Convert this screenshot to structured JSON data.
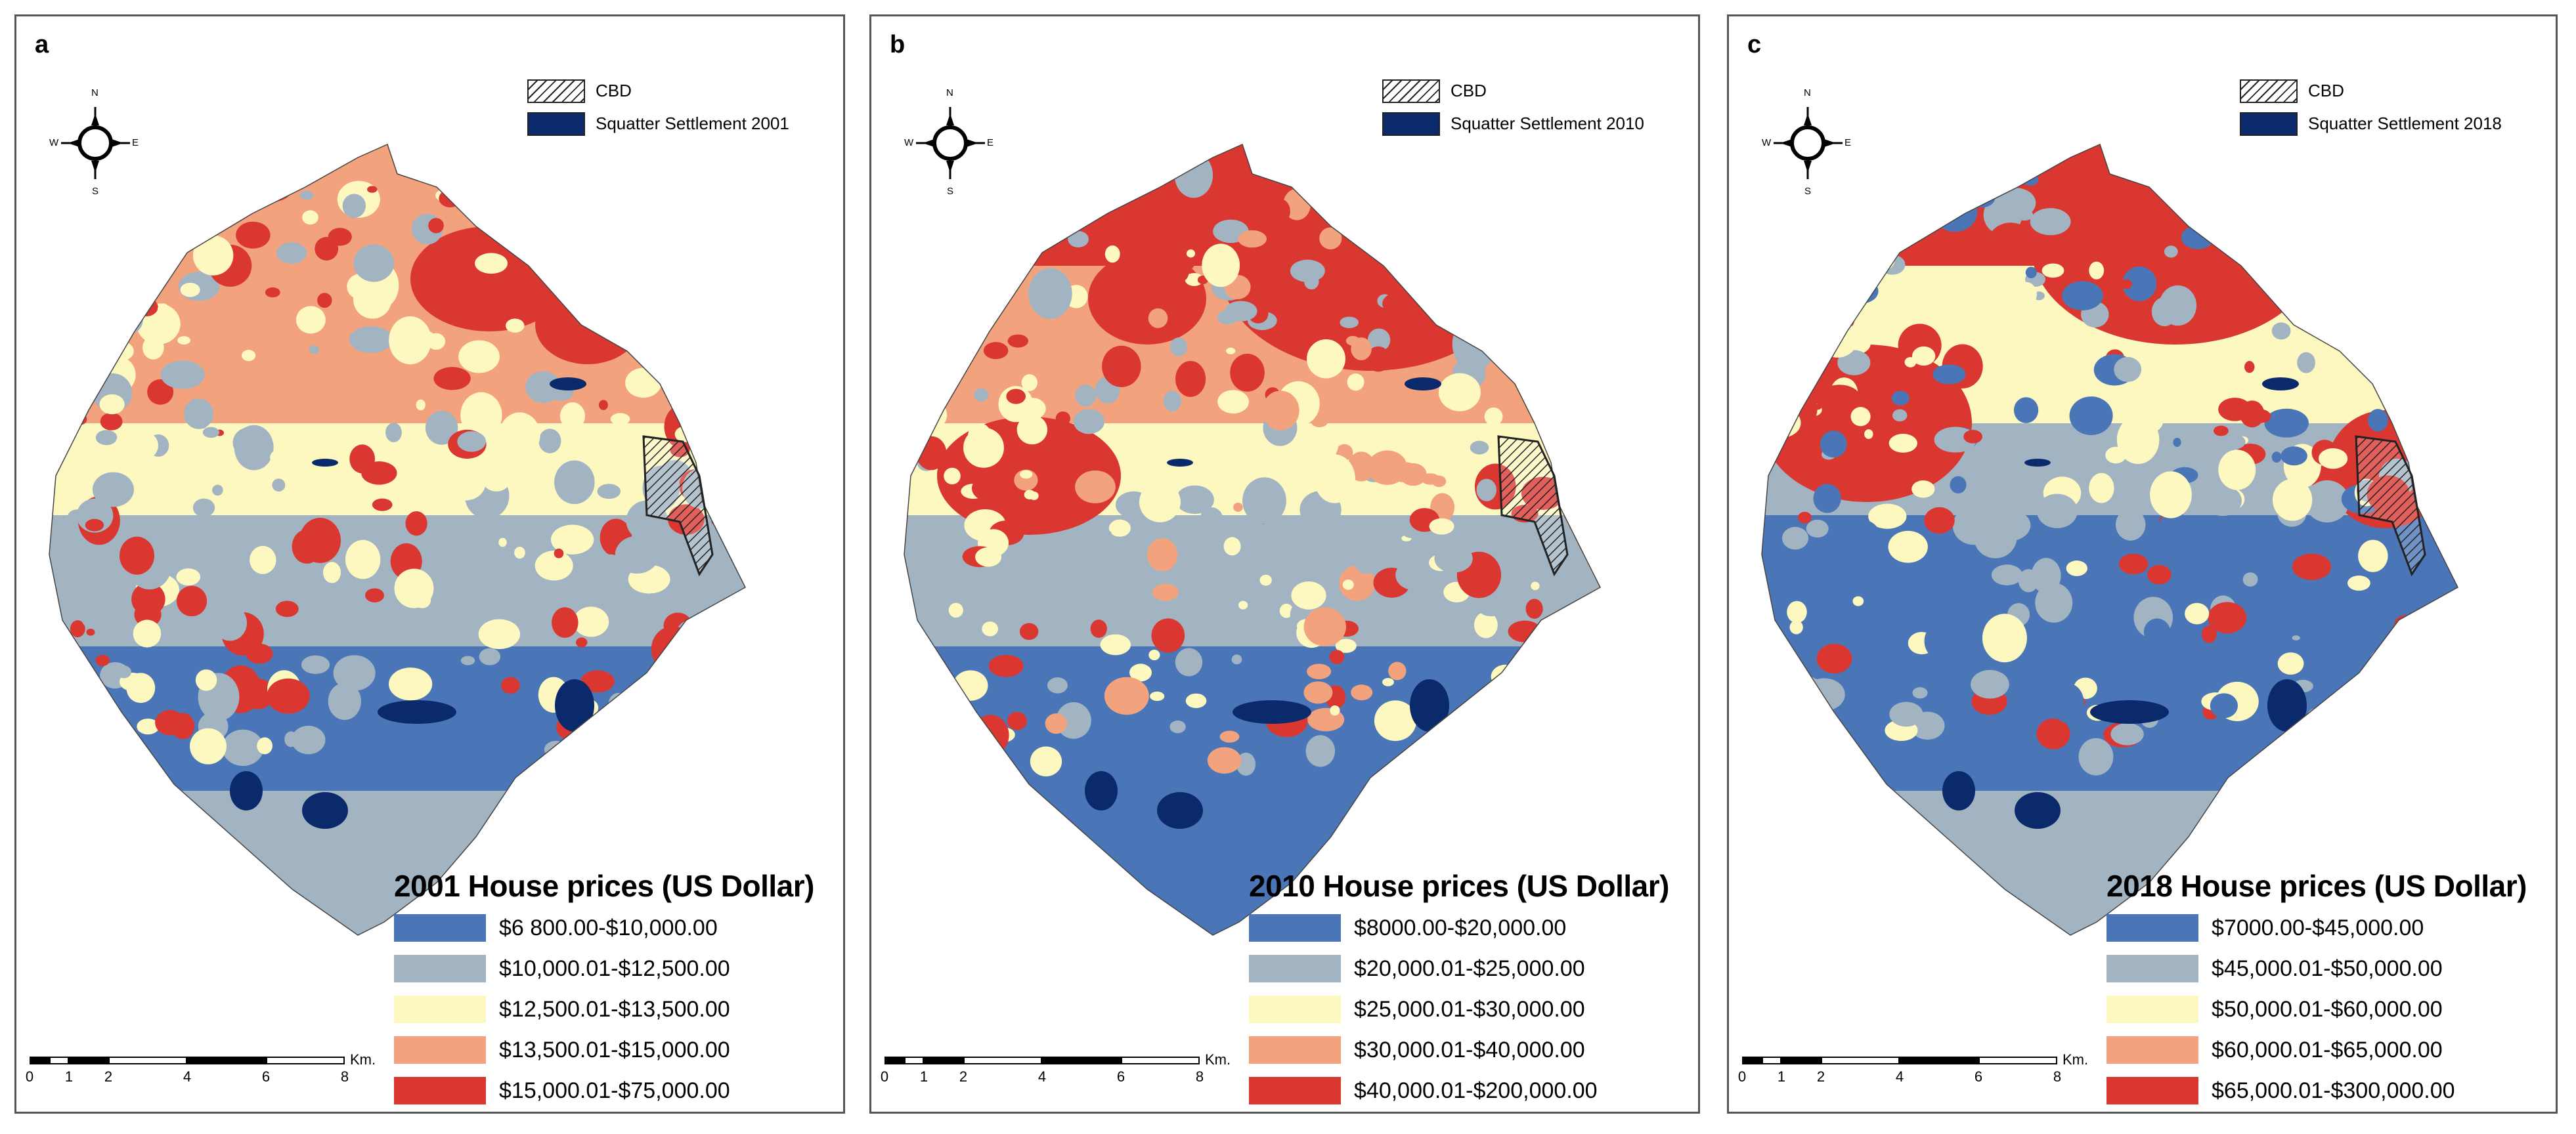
{
  "compass": {
    "n": "N",
    "s": "S",
    "e": "E",
    "w": "W"
  },
  "cbd_label": "CBD",
  "scale": {
    "ticks": [
      "0",
      "1",
      "2",
      "4",
      "6",
      "8"
    ],
    "unit": "Km."
  },
  "colors": {
    "c1": "#4a76b8",
    "c2": "#a2b4c2",
    "c3": "#fdf8c0",
    "c4": "#f2a37e",
    "c5": "#db3731",
    "squatter": "#0a2a6b",
    "cbd_hatch": "#222222"
  },
  "panels": [
    {
      "letter": "a",
      "squatter_label": "Squatter Settlement  2001",
      "legend_title": "2001 House prices (US Dollar)",
      "classes": [
        "$6 800.00-$10,000.00",
        "$10,000.01-$12,500.00",
        "$12,500.01-$13,500.00",
        "$13,500.01-$15,000.00",
        "$15,000.01-$75,000.00"
      ]
    },
    {
      "letter": "b",
      "squatter_label": "Squatter Settlement  2010",
      "legend_title": "2010 House prices (US Dollar)",
      "classes": [
        "$8000.00-$20,000.00",
        "$20,000.01-$25,000.00",
        "$25,000.01-$30,000.00",
        "$30,000.01-$40,000.00",
        "$40,000.01-$200,000.00"
      ]
    },
    {
      "letter": "c",
      "squatter_label": "Squatter Settlement  2018",
      "legend_title": "2018 House prices (US Dollar)",
      "classes": [
        "$7000.00-$45,000.00",
        "$45,000.01-$50,000.00",
        "$50,000.01-$60,000.00",
        "$60,000.01-$65,000.00",
        "$65,000.01-$300,000.00"
      ]
    }
  ]
}
